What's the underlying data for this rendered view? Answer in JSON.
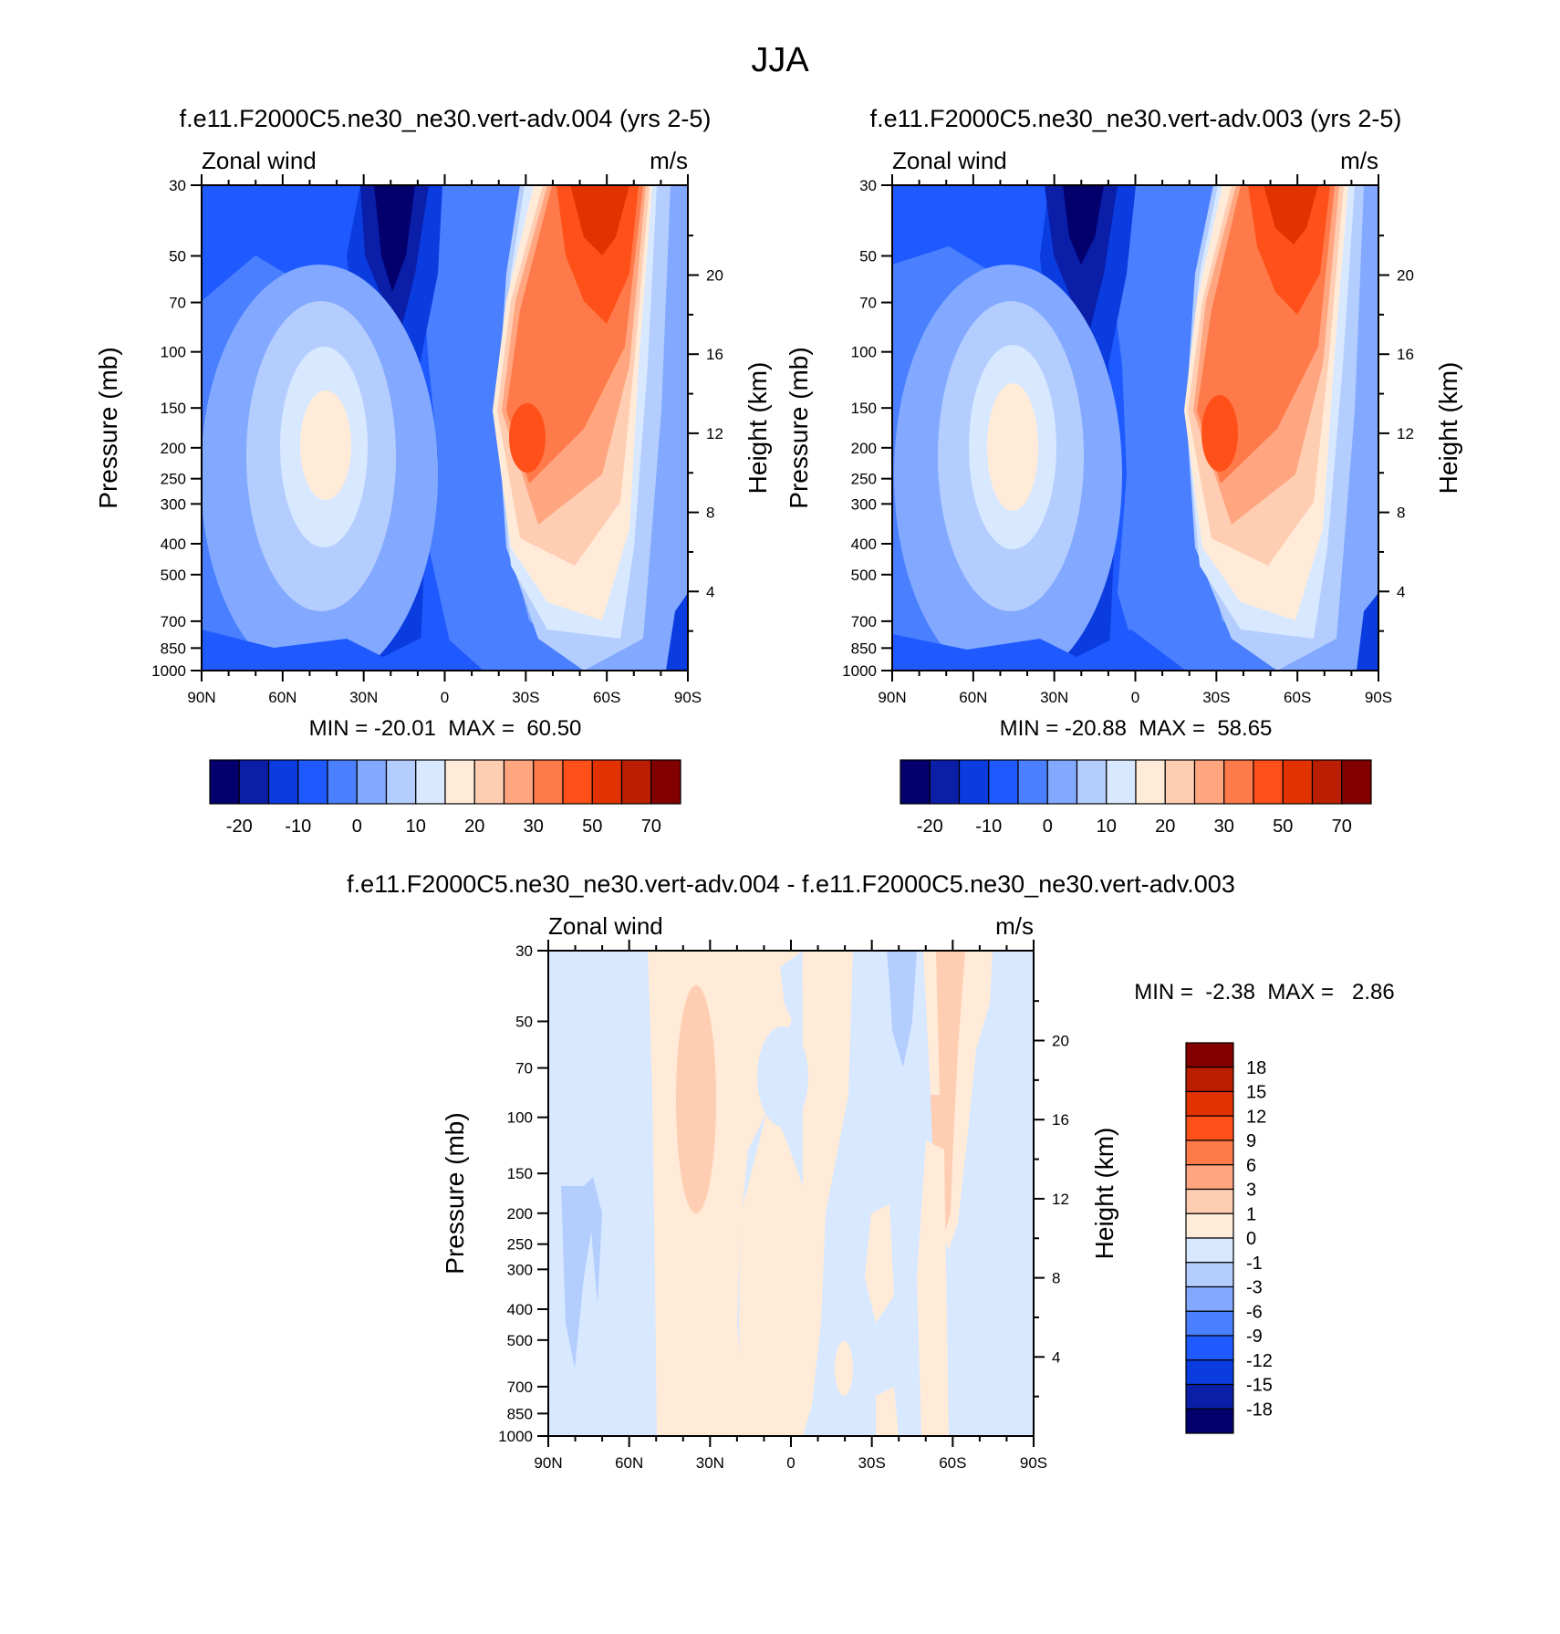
{
  "figure_title": "JJA",
  "chart_data": [
    {
      "type": "heatmap",
      "title": "f.e11.F2000C5.ne30_ne30.vert-adv.004 (yrs 2-5)",
      "variable": "Zonal wind",
      "units": "m/s",
      "ylabel": "Pressure (mb)",
      "ylabel_right": "Height (km)",
      "x_ticks": [
        "90N",
        "60N",
        "30N",
        "0",
        "30S",
        "60S",
        "90S"
      ],
      "y_ticks": [
        "30",
        "50",
        "70",
        "100",
        "150",
        "200",
        "250",
        "300",
        "400",
        "500",
        "700",
        "850",
        "1000"
      ],
      "y_ticks_right": [
        "20",
        "16",
        "12",
        "8",
        "4"
      ],
      "stats": "MIN = -20.01  MAX =  60.50",
      "colorbar_labels": [
        "-20",
        "-10",
        "0",
        "10",
        "20",
        "30",
        "50",
        "70"
      ],
      "colorbar_colors": [
        "#03006e",
        "#0a1ea8",
        "#0a3ce0",
        "#1e5aff",
        "#4a80ff",
        "#82a9ff",
        "#b4cdff",
        "#d8e8ff",
        "#ffebd8",
        "#ffcdb2",
        "#ffa580",
        "#ff7a4a",
        "#ff5019",
        "#e13200",
        "#b91e00",
        "#820000"
      ],
      "feature_values": {
        "jet_core": 55,
        "southern_jet": 45,
        "westerly": 20,
        "easterly": -20
      }
    },
    {
      "type": "heatmap",
      "title": "f.e11.F2000C5.ne30_ne30.vert-adv.003 (yrs 2-5)",
      "variable": "Zonal wind",
      "units": "m/s",
      "ylabel": "Pressure (mb)",
      "ylabel_right": "Height (km)",
      "x_ticks": [
        "90N",
        "60N",
        "30N",
        "0",
        "30S",
        "60S",
        "90S"
      ],
      "y_ticks": [
        "30",
        "50",
        "70",
        "100",
        "150",
        "200",
        "250",
        "300",
        "400",
        "500",
        "700",
        "850",
        "1000"
      ],
      "y_ticks_right": [
        "20",
        "16",
        "12",
        "8",
        "4"
      ],
      "stats": "MIN = -20.88  MAX =  58.65",
      "colorbar_labels": [
        "-20",
        "-10",
        "0",
        "10",
        "20",
        "30",
        "50",
        "70"
      ],
      "colorbar_colors": [
        "#03006e",
        "#0a1ea8",
        "#0a3ce0",
        "#1e5aff",
        "#4a80ff",
        "#82a9ff",
        "#b4cdff",
        "#d8e8ff",
        "#ffebd8",
        "#ffcdb2",
        "#ffa580",
        "#ff7a4a",
        "#ff5019",
        "#e13200",
        "#b91e00",
        "#820000"
      ],
      "feature_values": {
        "jet_core": 55,
        "southern_jet": 45,
        "westerly": 20,
        "easterly": -20
      }
    },
    {
      "type": "heatmap",
      "title": "f.e11.F2000C5.ne30_ne30.vert-adv.004 - f.e11.F2000C5.ne30_ne30.vert-adv.003",
      "variable": "Zonal wind",
      "units": "m/s",
      "ylabel": "Pressure (mb)",
      "ylabel_right": "Height (km)",
      "x_ticks": [
        "90N",
        "60N",
        "30N",
        "0",
        "30S",
        "60S",
        "90S"
      ],
      "y_ticks": [
        "30",
        "50",
        "70",
        "100",
        "150",
        "200",
        "250",
        "300",
        "400",
        "500",
        "700",
        "850",
        "1000"
      ],
      "y_ticks_right": [
        "20",
        "16",
        "12",
        "8",
        "4"
      ],
      "stats": "MIN =  -2.38  MAX =   2.86",
      "colorbar_labels": [
        "18",
        "15",
        "12",
        "9",
        "6",
        "3",
        "1",
        "0",
        "-1",
        "-3",
        "-6",
        "-9",
        "-12",
        "-15",
        "-18"
      ],
      "colorbar_colors": [
        "#820000",
        "#b91e00",
        "#e13200",
        "#ff5019",
        "#ff7a4a",
        "#ffa580",
        "#ffcdb2",
        "#ffebd8",
        "#d8e8ff",
        "#b4cdff",
        "#82a9ff",
        "#4a80ff",
        "#1e5aff",
        "#0a3ce0",
        "#0a1ea8",
        "#03006e"
      ]
    }
  ]
}
